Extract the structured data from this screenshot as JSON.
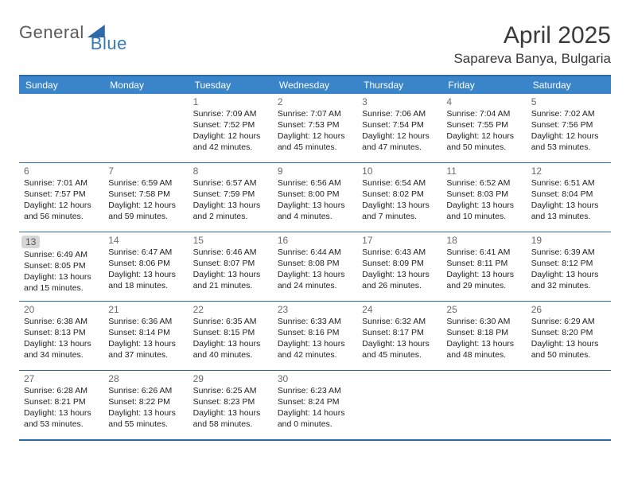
{
  "brand": {
    "part1": "General",
    "part2": "Blue"
  },
  "title": "April 2025",
  "subtitle": "Sapareva Banya, Bulgaria",
  "colors": {
    "header_bg": "#3a85c9",
    "border": "#2f6aa8",
    "text": "#222222",
    "muted": "#6a6a6a"
  },
  "day_names": [
    "Sunday",
    "Monday",
    "Tuesday",
    "Wednesday",
    "Thursday",
    "Friday",
    "Saturday"
  ],
  "weeks": [
    [
      {
        "day": "",
        "lines": []
      },
      {
        "day": "",
        "lines": []
      },
      {
        "day": "1",
        "lines": [
          "Sunrise: 7:09 AM",
          "Sunset: 7:52 PM",
          "Daylight: 12 hours and 42 minutes."
        ]
      },
      {
        "day": "2",
        "lines": [
          "Sunrise: 7:07 AM",
          "Sunset: 7:53 PM",
          "Daylight: 12 hours and 45 minutes."
        ]
      },
      {
        "day": "3",
        "lines": [
          "Sunrise: 7:06 AM",
          "Sunset: 7:54 PM",
          "Daylight: 12 hours and 47 minutes."
        ]
      },
      {
        "day": "4",
        "lines": [
          "Sunrise: 7:04 AM",
          "Sunset: 7:55 PM",
          "Daylight: 12 hours and 50 minutes."
        ]
      },
      {
        "day": "5",
        "lines": [
          "Sunrise: 7:02 AM",
          "Sunset: 7:56 PM",
          "Daylight: 12 hours and 53 minutes."
        ]
      }
    ],
    [
      {
        "day": "6",
        "lines": [
          "Sunrise: 7:01 AM",
          "Sunset: 7:57 PM",
          "Daylight: 12 hours and 56 minutes."
        ]
      },
      {
        "day": "7",
        "lines": [
          "Sunrise: 6:59 AM",
          "Sunset: 7:58 PM",
          "Daylight: 12 hours and 59 minutes."
        ]
      },
      {
        "day": "8",
        "lines": [
          "Sunrise: 6:57 AM",
          "Sunset: 7:59 PM",
          "Daylight: 13 hours and 2 minutes."
        ]
      },
      {
        "day": "9",
        "lines": [
          "Sunrise: 6:56 AM",
          "Sunset: 8:00 PM",
          "Daylight: 13 hours and 4 minutes."
        ]
      },
      {
        "day": "10",
        "lines": [
          "Sunrise: 6:54 AM",
          "Sunset: 8:02 PM",
          "Daylight: 13 hours and 7 minutes."
        ]
      },
      {
        "day": "11",
        "lines": [
          "Sunrise: 6:52 AM",
          "Sunset: 8:03 PM",
          "Daylight: 13 hours and 10 minutes."
        ]
      },
      {
        "day": "12",
        "lines": [
          "Sunrise: 6:51 AM",
          "Sunset: 8:04 PM",
          "Daylight: 13 hours and 13 minutes."
        ]
      }
    ],
    [
      {
        "day": "13",
        "highlight": true,
        "lines": [
          "Sunrise: 6:49 AM",
          "Sunset: 8:05 PM",
          "Daylight: 13 hours and 15 minutes."
        ]
      },
      {
        "day": "14",
        "lines": [
          "Sunrise: 6:47 AM",
          "Sunset: 8:06 PM",
          "Daylight: 13 hours and 18 minutes."
        ]
      },
      {
        "day": "15",
        "lines": [
          "Sunrise: 6:46 AM",
          "Sunset: 8:07 PM",
          "Daylight: 13 hours and 21 minutes."
        ]
      },
      {
        "day": "16",
        "lines": [
          "Sunrise: 6:44 AM",
          "Sunset: 8:08 PM",
          "Daylight: 13 hours and 24 minutes."
        ]
      },
      {
        "day": "17",
        "lines": [
          "Sunrise: 6:43 AM",
          "Sunset: 8:09 PM",
          "Daylight: 13 hours and 26 minutes."
        ]
      },
      {
        "day": "18",
        "lines": [
          "Sunrise: 6:41 AM",
          "Sunset: 8:11 PM",
          "Daylight: 13 hours and 29 minutes."
        ]
      },
      {
        "day": "19",
        "lines": [
          "Sunrise: 6:39 AM",
          "Sunset: 8:12 PM",
          "Daylight: 13 hours and 32 minutes."
        ]
      }
    ],
    [
      {
        "day": "20",
        "lines": [
          "Sunrise: 6:38 AM",
          "Sunset: 8:13 PM",
          "Daylight: 13 hours and 34 minutes."
        ]
      },
      {
        "day": "21",
        "lines": [
          "Sunrise: 6:36 AM",
          "Sunset: 8:14 PM",
          "Daylight: 13 hours and 37 minutes."
        ]
      },
      {
        "day": "22",
        "lines": [
          "Sunrise: 6:35 AM",
          "Sunset: 8:15 PM",
          "Daylight: 13 hours and 40 minutes."
        ]
      },
      {
        "day": "23",
        "lines": [
          "Sunrise: 6:33 AM",
          "Sunset: 8:16 PM",
          "Daylight: 13 hours and 42 minutes."
        ]
      },
      {
        "day": "24",
        "lines": [
          "Sunrise: 6:32 AM",
          "Sunset: 8:17 PM",
          "Daylight: 13 hours and 45 minutes."
        ]
      },
      {
        "day": "25",
        "lines": [
          "Sunrise: 6:30 AM",
          "Sunset: 8:18 PM",
          "Daylight: 13 hours and 48 minutes."
        ]
      },
      {
        "day": "26",
        "lines": [
          "Sunrise: 6:29 AM",
          "Sunset: 8:20 PM",
          "Daylight: 13 hours and 50 minutes."
        ]
      }
    ],
    [
      {
        "day": "27",
        "lines": [
          "Sunrise: 6:28 AM",
          "Sunset: 8:21 PM",
          "Daylight: 13 hours and 53 minutes."
        ]
      },
      {
        "day": "28",
        "lines": [
          "Sunrise: 6:26 AM",
          "Sunset: 8:22 PM",
          "Daylight: 13 hours and 55 minutes."
        ]
      },
      {
        "day": "29",
        "lines": [
          "Sunrise: 6:25 AM",
          "Sunset: 8:23 PM",
          "Daylight: 13 hours and 58 minutes."
        ]
      },
      {
        "day": "30",
        "lines": [
          "Sunrise: 6:23 AM",
          "Sunset: 8:24 PM",
          "Daylight: 14 hours and 0 minutes."
        ]
      },
      {
        "day": "",
        "lines": []
      },
      {
        "day": "",
        "lines": []
      },
      {
        "day": "",
        "lines": []
      }
    ]
  ]
}
